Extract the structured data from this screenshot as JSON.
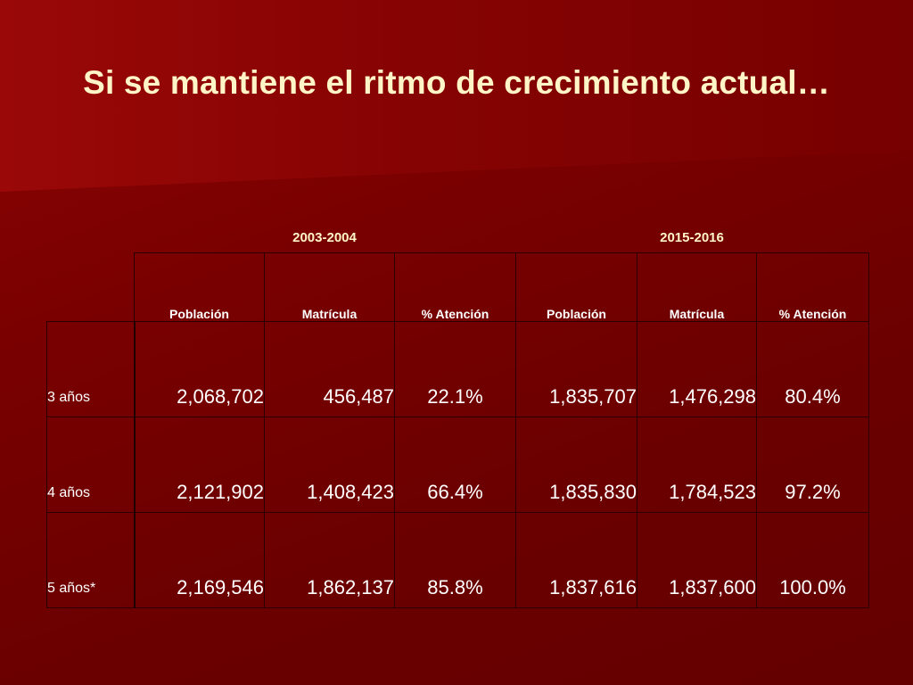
{
  "title": "Si se mantiene el ritmo de crecimiento actual…",
  "periods": [
    "2003-2004",
    "2015-2016"
  ],
  "columns": [
    "Población",
    "Matrícula",
    "% Atención",
    "Población",
    "Matrícula",
    "% Atención"
  ],
  "rows": [
    {
      "label": "3 años",
      "values": [
        "2,068,702",
        "456,487",
        "22.1%",
        "1,835,707",
        "1,476,298",
        "80.4%"
      ]
    },
    {
      "label": "4 años",
      "values": [
        "2,121,902",
        "1,408,423",
        "66.4%",
        "1,835,830",
        "1,784,523",
        "97.2%"
      ]
    },
    {
      "label": "5 años*",
      "values": [
        "2,169,546",
        "1,862,137",
        "85.8%",
        "1,837,616",
        "1,837,600",
        "100.0%"
      ]
    }
  ],
  "colors": {
    "background": "#7a0000",
    "title": "#fff5c6",
    "text": "#ffffff",
    "border": "#2a0000"
  }
}
